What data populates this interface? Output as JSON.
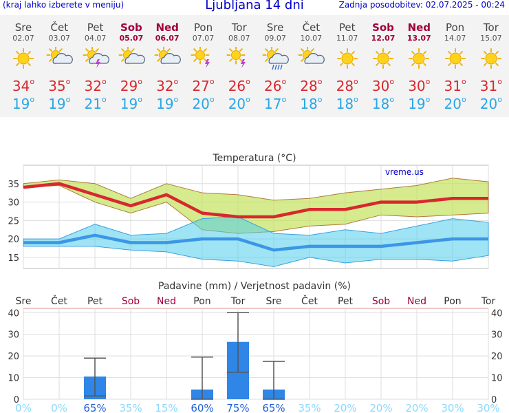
{
  "header": {
    "hint": "(kraj lahko izberete v meniju)",
    "title": "Ljubljana 14 dni",
    "updated": "Zadnja posodobitev: 02.07.2025 - 00:24"
  },
  "colors": {
    "max": "#d8282e",
    "min": "#29a6e6",
    "weekend": "#a0003c",
    "bar": "#2f86e6",
    "prob_high": "#1f5fd6",
    "prob_low": "#8ad8ff"
  },
  "days": [
    {
      "name": "Sre",
      "date": "02.07",
      "weekend": false,
      "icon": "sun-icon",
      "max": "34",
      "min": "19"
    },
    {
      "name": "Čet",
      "date": "03.07",
      "weekend": false,
      "icon": "sun-cloud-icon",
      "max": "35",
      "min": "19"
    },
    {
      "name": "Pet",
      "date": "04.07",
      "weekend": false,
      "icon": "sun-cloud-storm-icon",
      "max": "32",
      "min": "21"
    },
    {
      "name": "Sob",
      "date": "05.07",
      "weekend": true,
      "icon": "sun-cloud-icon",
      "max": "29",
      "min": "19"
    },
    {
      "name": "Ned",
      "date": "06.07",
      "weekend": true,
      "icon": "sun-cloud-icon",
      "max": "32",
      "min": "19"
    },
    {
      "name": "Pon",
      "date": "07.07",
      "weekend": false,
      "icon": "sun-storm-icon",
      "max": "27",
      "min": "20"
    },
    {
      "name": "Tor",
      "date": "08.07",
      "weekend": false,
      "icon": "sun-storm-icon",
      "max": "26",
      "min": "20"
    },
    {
      "name": "Sre",
      "date": "09.07",
      "weekend": false,
      "icon": "sun-cloud-rain-icon",
      "max": "26",
      "min": "17"
    },
    {
      "name": "Čet",
      "date": "10.07",
      "weekend": false,
      "icon": "sun-cloud-icon",
      "max": "28",
      "min": "18"
    },
    {
      "name": "Pet",
      "date": "11.07",
      "weekend": false,
      "icon": "sun-icon",
      "max": "28",
      "min": "18"
    },
    {
      "name": "Sob",
      "date": "12.07",
      "weekend": true,
      "icon": "sun-icon",
      "max": "30",
      "min": "18"
    },
    {
      "name": "Ned",
      "date": "13.07",
      "weekend": true,
      "icon": "sun-icon",
      "max": "30",
      "min": "19"
    },
    {
      "name": "Pon",
      "date": "14.07",
      "weekend": false,
      "icon": "sun-icon",
      "max": "31",
      "min": "20"
    },
    {
      "name": "Tor",
      "date": "15.07",
      "weekend": false,
      "icon": "sun-icon",
      "max": "31",
      "min": "20"
    }
  ],
  "chart_data": [
    {
      "type": "area",
      "title": "Temperatura (°C)",
      "watermark": "vreme.us",
      "ylim": [
        12,
        40
      ],
      "yticks": [
        15,
        20,
        25,
        30,
        35
      ],
      "grid": true,
      "max_series": {
        "name": "max",
        "values": [
          34,
          35,
          32,
          29,
          32,
          27,
          26,
          26,
          28,
          28,
          30,
          30,
          31,
          31
        ]
      },
      "max_band_high": [
        35,
        36,
        35,
        31,
        35,
        32.5,
        32,
        30.5,
        31,
        32.5,
        33.5,
        34.5,
        36.5,
        35.5
      ],
      "max_band_low": [
        34,
        34.5,
        30,
        27,
        30,
        22.5,
        21.5,
        22,
        23.5,
        24,
        26.5,
        26,
        26.5,
        27
      ],
      "min_series": {
        "name": "min",
        "values": [
          19,
          19,
          21,
          19,
          19,
          20,
          20,
          17,
          18,
          18,
          18,
          19,
          20,
          20
        ]
      },
      "min_band_high": [
        20,
        20,
        24,
        21,
        21.5,
        25.5,
        26,
        21.5,
        21,
        22.5,
        21.5,
        23.5,
        25.5,
        24.5
      ],
      "min_band_low": [
        18,
        18,
        18,
        17,
        16.5,
        14.5,
        14,
        12.5,
        15,
        13.5,
        14.5,
        14.5,
        14,
        15.5
      ]
    },
    {
      "type": "bar",
      "title": "Padavine (mm) / Verjetnost padavin (%)",
      "categories": [
        "Sre",
        "Čet",
        "Pet",
        "Sob",
        "Ned",
        "Pon",
        "Tor",
        "Sre",
        "Čet",
        "Pet",
        "Sob",
        "Ned",
        "Pon",
        "Tor"
      ],
      "ylim": [
        0,
        42
      ],
      "yticks": [
        0,
        10,
        20,
        30,
        40
      ],
      "grid": true,
      "values": [
        0,
        0,
        10.5,
        0,
        0,
        4.5,
        26.5,
        4.5,
        0,
        0,
        0,
        0,
        0,
        0
      ],
      "err_high": [
        null,
        null,
        19,
        null,
        null,
        19.5,
        40,
        17.5,
        null,
        null,
        null,
        null,
        null,
        null
      ],
      "err_low": [
        null,
        null,
        1.5,
        null,
        null,
        0,
        12.5,
        0,
        null,
        null,
        null,
        null,
        null,
        null
      ],
      "probability": [
        "0%",
        "0%",
        "65%",
        "35%",
        "15%",
        "60%",
        "75%",
        "65%",
        "35%",
        "20%",
        "20%",
        "20%",
        "30%",
        "30%"
      ]
    }
  ]
}
